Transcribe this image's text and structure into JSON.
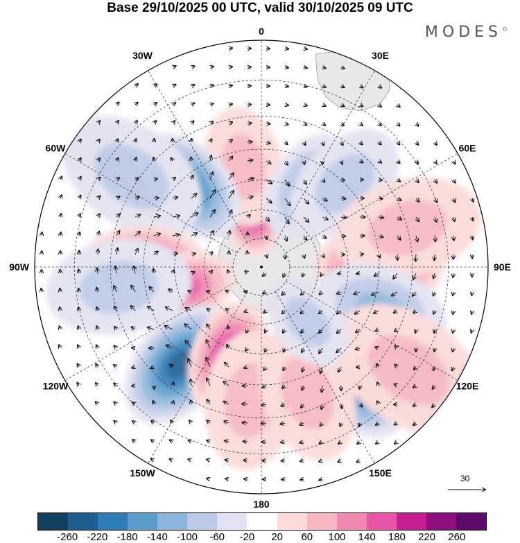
{
  "title": "Base 29/10/2025 00 UTC, valid 30/10/2025 09 UTC",
  "logo": "MODES",
  "logo_mark": "©",
  "longitude_labels": [
    {
      "text": "0",
      "bearing": 0
    },
    {
      "text": "30E",
      "bearing": 30
    },
    {
      "text": "60E",
      "bearing": 60
    },
    {
      "text": "90E",
      "bearing": 90
    },
    {
      "text": "120E",
      "bearing": 120
    },
    {
      "text": "150E",
      "bearing": 150
    },
    {
      "text": "180",
      "bearing": 180
    },
    {
      "text": "150W",
      "bearing": 210
    },
    {
      "text": "120W",
      "bearing": 240
    },
    {
      "text": "90W",
      "bearing": 270
    },
    {
      "text": "60W",
      "bearing": 300
    },
    {
      "text": "30W",
      "bearing": 330
    }
  ],
  "reference_vector": "30",
  "colorbar": {
    "colors": [
      "#12405e",
      "#1f5f90",
      "#2e7cb8",
      "#5a9ccc",
      "#8cb6db",
      "#bcc9e6",
      "#e2e2f2",
      "#ffffff",
      "#fbdad9",
      "#f7b6c0",
      "#f087b0",
      "#e655a6",
      "#c71e91",
      "#8f0f7e",
      "#5c0a6b"
    ],
    "labels": [
      "-260",
      "-220",
      "-180",
      "-140",
      "-100",
      "-60",
      "-20",
      "20",
      "60",
      "100",
      "140",
      "180",
      "220",
      "260"
    ]
  },
  "anomaly_blobs": [
    {
      "lat": -70,
      "lon": -10,
      "value": 160
    },
    {
      "lat": -55,
      "lon": -10,
      "value": 40
    },
    {
      "lat": -58,
      "lon": 30,
      "value": -100
    },
    {
      "lat": -50,
      "lon": 45,
      "value": -60
    },
    {
      "lat": -53,
      "lon": -42,
      "value": -160
    },
    {
      "lat": -38,
      "lon": -55,
      "value": -60
    },
    {
      "lat": -50,
      "lon": 90,
      "value": 170
    },
    {
      "lat": -40,
      "lon": 75,
      "value": 60
    },
    {
      "lat": -47,
      "lon": 110,
      "value": -100
    },
    {
      "lat": -50,
      "lon": -90,
      "value": 150
    },
    {
      "lat": -62,
      "lon": -105,
      "value": 110
    },
    {
      "lat": -47,
      "lon": -140,
      "value": -190
    },
    {
      "lat": -57,
      "lon": -160,
      "value": 160
    },
    {
      "lat": -45,
      "lon": -175,
      "value": 50
    },
    {
      "lat": -43,
      "lon": 140,
      "value": -190
    },
    {
      "lat": -32,
      "lon": 125,
      "value": 50
    },
    {
      "lat": -45,
      "lon": 160,
      "value": 50
    },
    {
      "lat": -65,
      "lon": 140,
      "value": -40
    },
    {
      "lat": -42,
      "lon": -98,
      "value": -40
    }
  ]
}
